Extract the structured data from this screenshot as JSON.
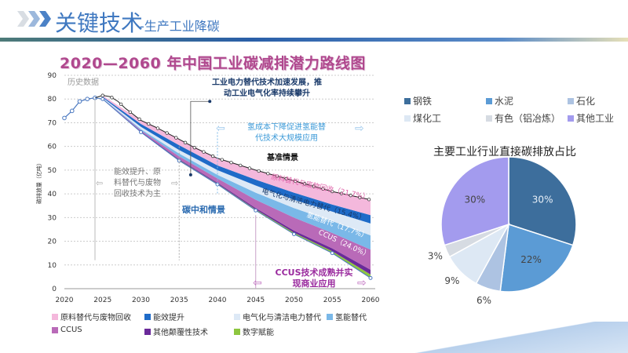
{
  "header": {
    "title": "关键技术",
    "subtitle": "-生产工业降碳"
  },
  "chart_data": [
    {
      "type": "area",
      "title": "2020—2060 年中国工业碳减排潜力路线图",
      "ylabel": "碳排放量（亿吨）",
      "xlabel": "",
      "ylim": [
        0,
        90
      ],
      "xlim": [
        2020,
        2060
      ],
      "x_ticks": [
        "2020",
        "2025",
        "2030",
        "2035",
        "2040",
        "2045",
        "2050",
        "2055",
        "2060"
      ],
      "y_ticks": [
        "0",
        "10",
        "20",
        "30",
        "40",
        "50",
        "60",
        "70",
        "80",
        "90"
      ],
      "grid": true,
      "history": {
        "label": "历史数据",
        "x": [
          2020,
          2021,
          2022,
          2023,
          2024
        ],
        "y": [
          72,
          75,
          79,
          80,
          80.5
        ]
      },
      "baseline": {
        "label": "基准情景",
        "x": [
          2024,
          2025,
          2026,
          2027,
          2028,
          2030,
          2032,
          2035,
          2037,
          2040,
          2045,
          2050,
          2055,
          2060
        ],
        "y": [
          80.5,
          81.5,
          81,
          79,
          76,
          71,
          68,
          63,
          59.5,
          55,
          50,
          45.5,
          41,
          37.5
        ]
      },
      "wedge_years": [
        2025,
        2030,
        2035,
        2040,
        2045,
        2050,
        2055,
        2060
      ],
      "neutral": {
        "label": "碳中和情景",
        "y": [
          80,
          66,
          54,
          44,
          33,
          23,
          15,
          4.5
        ]
      },
      "wedges": [
        {
          "name": "数字赋能",
          "color": "#8dc63f",
          "values": [
            0.05,
            0.1,
            0.3,
            0.3,
            0.4,
            0.6,
            0.8,
            1.5
          ]
        },
        {
          "name": "其他颠覆性技术",
          "color": "#6a2a9a",
          "values": [
            0.05,
            0.2,
            0.3,
            0.4,
            0.6,
            0.9,
            1.2,
            2
          ]
        },
        {
          "name": "CCUS",
          "color": "#b96ab8",
          "values": [
            0.1,
            0.5,
            1.2,
            1.8,
            3.5,
            5.5,
            6.5,
            8.5
          ],
          "label": "CCUS（24.0%）"
        },
        {
          "name": "氢能替代",
          "color": "#7ab8e8",
          "values": [
            0.1,
            0.5,
            1.2,
            1.5,
            3,
            4,
            5,
            6
          ],
          "label": "氢能替代（17.7%）"
        },
        {
          "name": "电气化与清洁电力替代",
          "color": "#dde9f6",
          "values": [
            0.3,
            1,
            1.5,
            2,
            3,
            3.5,
            4,
            5
          ],
          "label": "电气化与清洁电力替代（15.4%）"
        },
        {
          "name": "能效提升",
          "color": "#1f6bc8",
          "values": [
            0.4,
            1.2,
            2,
            2,
            2.5,
            3,
            3,
            3.5
          ]
        },
        {
          "name": "原料替代与废物回收",
          "color": "#f4b8dc",
          "values": [
            0.5,
            1.5,
            2.5,
            3,
            4,
            5,
            5.5,
            6.5
          ],
          "label": "原料替代与废物回收（21.7%）"
        }
      ],
      "annotations": {
        "phase1": "能效提升、原料替代与废物回收技术为主",
        "phase2_line1": "工业电力替代技术加速发展，推",
        "phase2_line2": "动工业电气化率持续攀升",
        "phase3_line1": "氢成本下降促进氢能替",
        "phase3_line2": "代技术大规模应用",
        "phase4_line1": "CCUS技术成熟并实",
        "phase4_line2": "现商业应用"
      }
    },
    {
      "type": "pie",
      "title": "主要工业行业直接碳排放占比",
      "categories": [
        "钢铁",
        "水泥",
        "石化",
        "煤化工",
        "有色（铝冶炼）",
        "其他工业"
      ],
      "values": [
        30,
        22,
        6,
        9,
        3,
        30
      ],
      "labels": [
        "30%",
        "22%",
        "6%",
        "9%",
        "3%",
        "30%"
      ],
      "colors": [
        "#3d6e9c",
        "#5b9bd5",
        "#adc3e2",
        "#dde8f4",
        "#d6dbe2",
        "#a39bee"
      ],
      "legend_position": "top"
    }
  ]
}
